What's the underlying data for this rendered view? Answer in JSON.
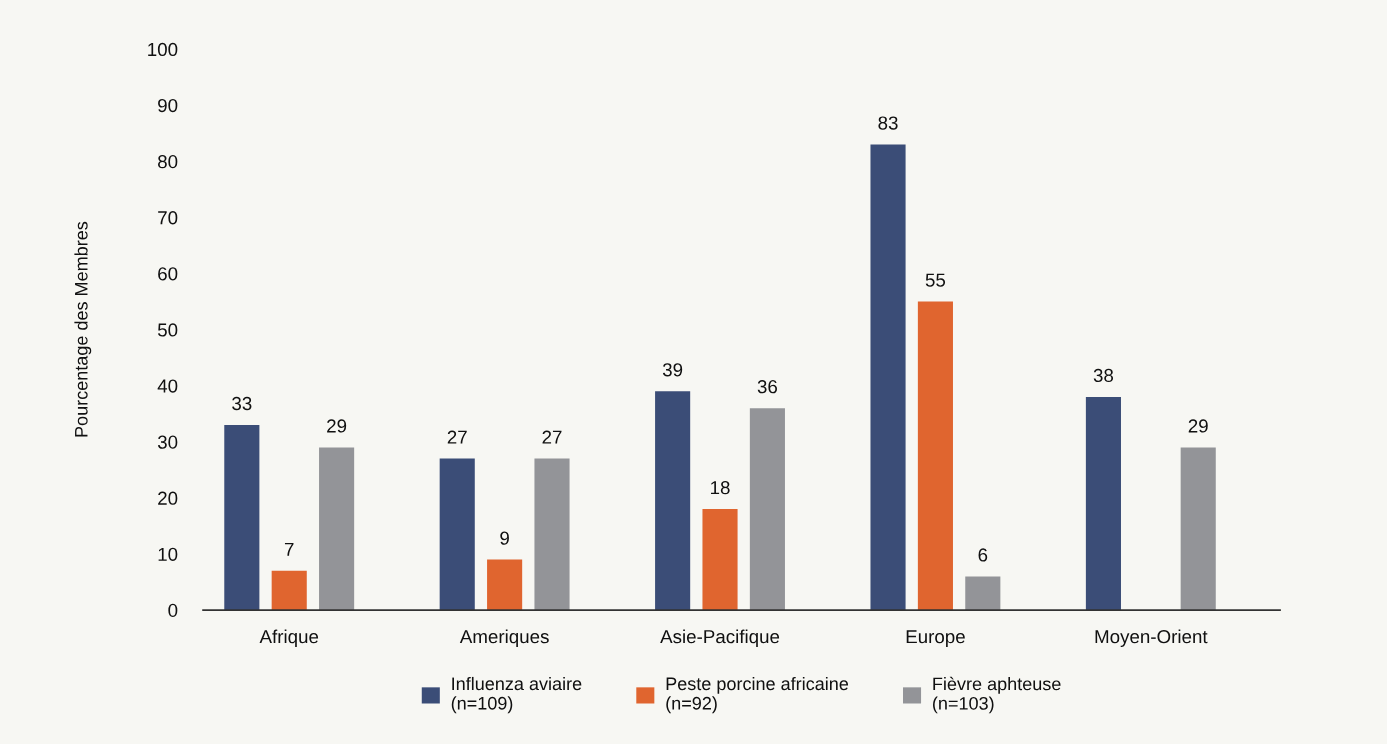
{
  "chart_data": {
    "type": "bar",
    "ylabel": "Pourcentage des Membres",
    "categories": [
      "Afrique",
      "Ameriques",
      "Asie-Pacifique",
      "Europe",
      "Moyen-Orient"
    ],
    "series": [
      {
        "name": "Influenza aviaire\n(n=109)",
        "color": "#3b4d77",
        "values": [
          33,
          27,
          39,
          83,
          38
        ]
      },
      {
        "name": "Peste porcine africaine\n(n=92)",
        "color": "#e0652f",
        "values": [
          7,
          9,
          18,
          55,
          null
        ]
      },
      {
        "name": "Fièvre aphteuse\n(n=103)",
        "color": "#939498",
        "values": [
          29,
          27,
          36,
          6,
          29
        ]
      }
    ],
    "ylim": [
      0,
      100
    ],
    "yticks": [
      0,
      10,
      20,
      30,
      40,
      50,
      60,
      70,
      80,
      90,
      100
    ],
    "grid": false,
    "legend": "bottom",
    "data_labels": true
  }
}
